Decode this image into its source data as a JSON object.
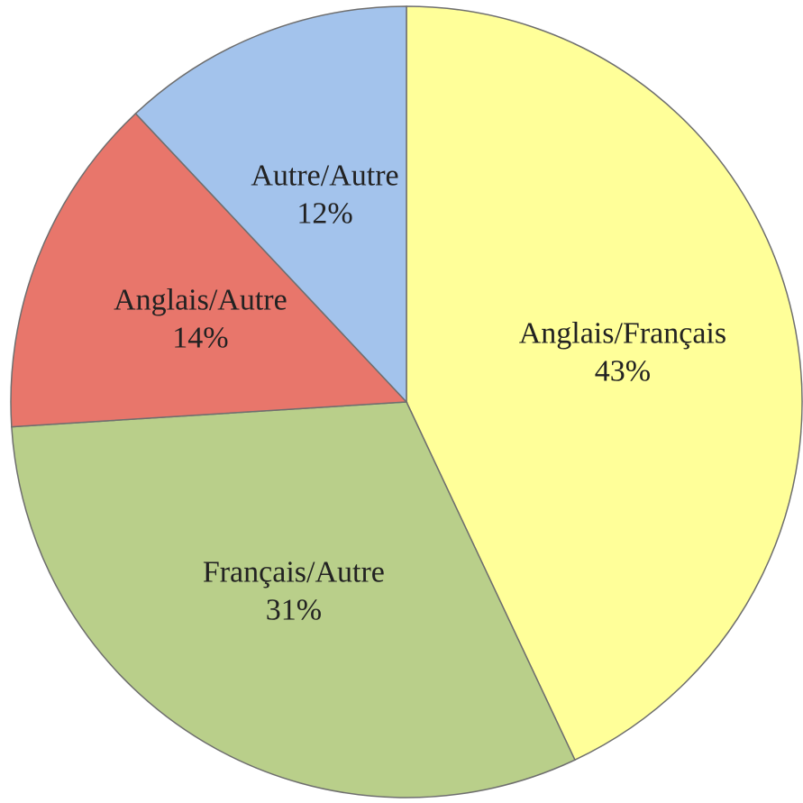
{
  "chart_data": {
    "type": "pie",
    "categories": [
      "Anglais/Français",
      "Français/Autre",
      "Anglais/Autre",
      "Autre/Autre"
    ],
    "values": [
      43,
      31,
      14,
      12
    ],
    "value_labels": [
      "43%",
      "31%",
      "14%",
      "12%"
    ],
    "colors": [
      "#ffff99",
      "#b9cf8a",
      "#e8766b",
      "#a3c3ec"
    ]
  }
}
